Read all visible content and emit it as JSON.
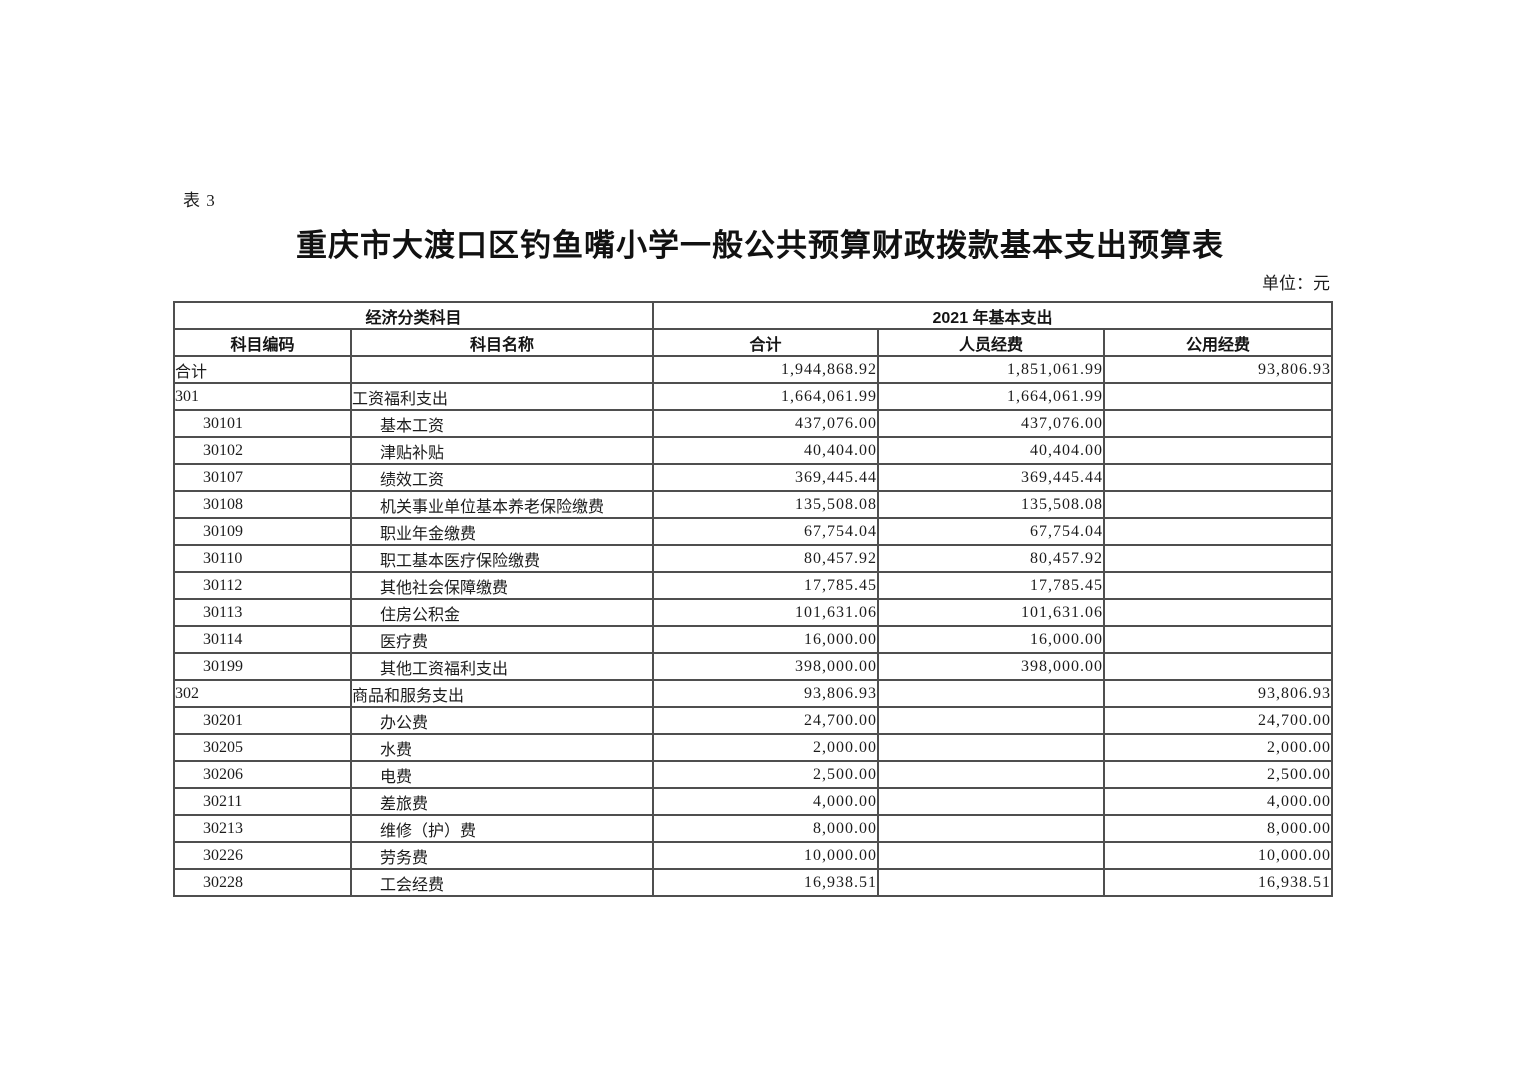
{
  "page": {
    "table_label": "表 3",
    "title": "重庆市大渡口区钓鱼嘴小学一般公共预算财政拨款基本支出预算表",
    "unit_note": "单位：元"
  },
  "table": {
    "header": {
      "group_left": "经济分类科目",
      "group_right": "2021 年基本支出",
      "col_code": "科目编码",
      "col_name": "科目名称",
      "col_total": "合计",
      "col_personnel": "人员经费",
      "col_public": "公用经费"
    },
    "rows": [
      {
        "code": "合计",
        "name": "",
        "total": "1,944,868.92",
        "personnel": "1,851,061.99",
        "public": "93,806.93",
        "level": 0
      },
      {
        "code": "301",
        "name": "工资福利支出",
        "total": "1,664,061.99",
        "personnel": "1,664,061.99",
        "public": "",
        "level": 0
      },
      {
        "code": "30101",
        "name": "基本工资",
        "total": "437,076.00",
        "personnel": "437,076.00",
        "public": "",
        "level": 1
      },
      {
        "code": "30102",
        "name": "津贴补贴",
        "total": "40,404.00",
        "personnel": "40,404.00",
        "public": "",
        "level": 1
      },
      {
        "code": "30107",
        "name": "绩效工资",
        "total": "369,445.44",
        "personnel": "369,445.44",
        "public": "",
        "level": 1
      },
      {
        "code": "30108",
        "name": "机关事业单位基本养老保险缴费",
        "total": "135,508.08",
        "personnel": "135,508.08",
        "public": "",
        "level": 1
      },
      {
        "code": "30109",
        "name": "职业年金缴费",
        "total": "67,754.04",
        "personnel": "67,754.04",
        "public": "",
        "level": 1
      },
      {
        "code": "30110",
        "name": "职工基本医疗保险缴费",
        "total": "80,457.92",
        "personnel": "80,457.92",
        "public": "",
        "level": 1
      },
      {
        "code": "30112",
        "name": "其他社会保障缴费",
        "total": "17,785.45",
        "personnel": "17,785.45",
        "public": "",
        "level": 1
      },
      {
        "code": "30113",
        "name": "住房公积金",
        "total": "101,631.06",
        "personnel": "101,631.06",
        "public": "",
        "level": 1
      },
      {
        "code": "30114",
        "name": "医疗费",
        "total": "16,000.00",
        "personnel": "16,000.00",
        "public": "",
        "level": 1
      },
      {
        "code": "30199",
        "name": "其他工资福利支出",
        "total": "398,000.00",
        "personnel": "398,000.00",
        "public": "",
        "level": 1
      },
      {
        "code": "302",
        "name": "商品和服务支出",
        "total": "93,806.93",
        "personnel": "",
        "public": "93,806.93",
        "level": 0
      },
      {
        "code": "30201",
        "name": "办公费",
        "total": "24,700.00",
        "personnel": "",
        "public": "24,700.00",
        "level": 1
      },
      {
        "code": "30205",
        "name": "水费",
        "total": "2,000.00",
        "personnel": "",
        "public": "2,000.00",
        "level": 1
      },
      {
        "code": "30206",
        "name": "电费",
        "total": "2,500.00",
        "personnel": "",
        "public": "2,500.00",
        "level": 1
      },
      {
        "code": "30211",
        "name": "差旅费",
        "total": "4,000.00",
        "personnel": "",
        "public": "4,000.00",
        "level": 1
      },
      {
        "code": "30213",
        "name": "维修（护）费",
        "total": "8,000.00",
        "personnel": "",
        "public": "8,000.00",
        "level": 1
      },
      {
        "code": "30226",
        "name": "劳务费",
        "total": "10,000.00",
        "personnel": "",
        "public": "10,000.00",
        "level": 1
      },
      {
        "code": "30228",
        "name": "工会经费",
        "total": "16,938.51",
        "personnel": "",
        "public": "16,938.51",
        "level": 1
      }
    ]
  }
}
